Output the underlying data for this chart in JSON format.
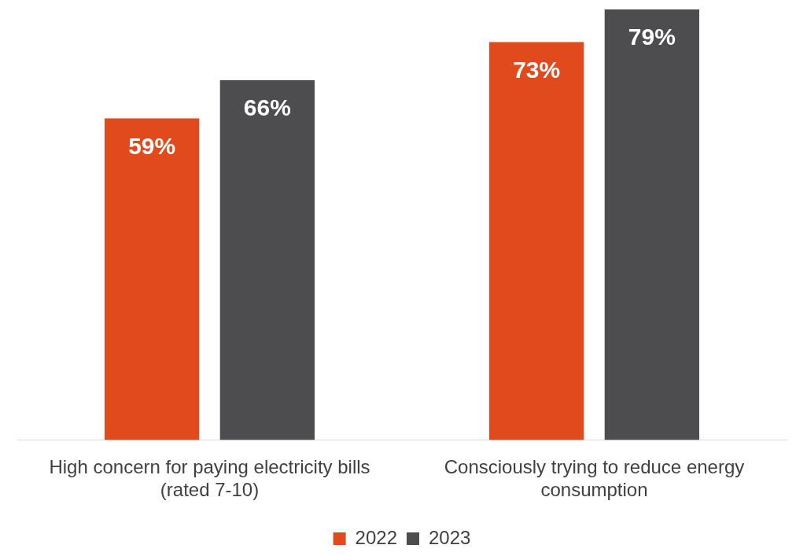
{
  "chart_data": {
    "type": "bar",
    "categories": [
      "High concern for paying electricity bills (rated 7-10)",
      "Consciously trying to reduce energy consumption"
    ],
    "series": [
      {
        "name": "2022",
        "color": "#e04a1c",
        "values": [
          59,
          73
        ],
        "value_labels": [
          "59%",
          "73%"
        ]
      },
      {
        "name": "2023",
        "color": "#4d4d4f",
        "values": [
          66,
          79
        ],
        "value_labels": [
          "66%",
          "79%"
        ]
      }
    ],
    "legend": "bottom",
    "grid": false
  }
}
